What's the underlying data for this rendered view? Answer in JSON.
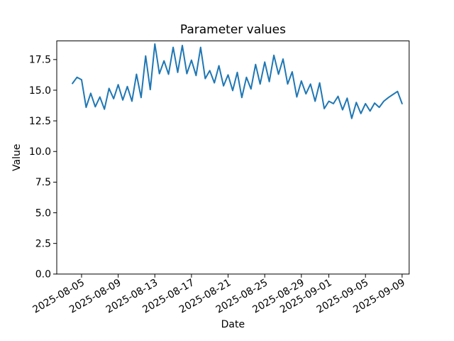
{
  "chart_data": {
    "type": "line",
    "title": "Parameter values",
    "xlabel": "Date",
    "ylabel": "Value",
    "grid": false,
    "legend": "none",
    "background": "#ffffff",
    "line_color": "#1f77b4",
    "ylim": [
      0,
      19.02
    ],
    "xlim": [
      "2025-08-02T07:00:00Z",
      "2025-09-09T18:30:00Z"
    ],
    "y_ticks": [
      0.0,
      2.5,
      5.0,
      7.5,
      10.0,
      12.5,
      15.0,
      17.5
    ],
    "x_ticks": [
      "2025-08-05",
      "2025-08-09",
      "2025-08-13",
      "2025-08-17",
      "2025-08-21",
      "2025-08-25",
      "2025-08-29",
      "2025-09-01",
      "2025-09-05",
      "2025-09-09"
    ],
    "series": [
      {
        "color": "#1f77b4",
        "x": [
          "2025-08-04T00:00:00Z",
          "2025-08-04T12:00:00Z",
          "2025-08-05T00:00:00Z",
          "2025-08-05T12:00:00Z",
          "2025-08-06T00:00:00Z",
          "2025-08-06T12:00:00Z",
          "2025-08-07T00:00:00Z",
          "2025-08-07T12:00:00Z",
          "2025-08-08T00:00:00Z",
          "2025-08-08T12:00:00Z",
          "2025-08-09T00:00:00Z",
          "2025-08-09T12:00:00Z",
          "2025-08-10T00:00:00Z",
          "2025-08-10T12:00:00Z",
          "2025-08-11T00:00:00Z",
          "2025-08-11T12:00:00Z",
          "2025-08-12T00:00:00Z",
          "2025-08-12T12:00:00Z",
          "2025-08-13T00:00:00Z",
          "2025-08-13T12:00:00Z",
          "2025-08-14T00:00:00Z",
          "2025-08-14T12:00:00Z",
          "2025-08-15T00:00:00Z",
          "2025-08-15T12:00:00Z",
          "2025-08-16T00:00:00Z",
          "2025-08-16T12:00:00Z",
          "2025-08-17T00:00:00Z",
          "2025-08-17T12:00:00Z",
          "2025-08-18T00:00:00Z",
          "2025-08-18T12:00:00Z",
          "2025-08-19T00:00:00Z",
          "2025-08-19T12:00:00Z",
          "2025-08-20T00:00:00Z",
          "2025-08-20T12:00:00Z",
          "2025-08-21T00:00:00Z",
          "2025-08-21T12:00:00Z",
          "2025-08-22T00:00:00Z",
          "2025-08-22T12:00:00Z",
          "2025-08-23T00:00:00Z",
          "2025-08-23T12:00:00Z",
          "2025-08-24T00:00:00Z",
          "2025-08-24T12:00:00Z",
          "2025-08-25T00:00:00Z",
          "2025-08-25T12:00:00Z",
          "2025-08-26T00:00:00Z",
          "2025-08-26T12:00:00Z",
          "2025-08-27T00:00:00Z",
          "2025-08-27T12:00:00Z",
          "2025-08-28T00:00:00Z",
          "2025-08-28T12:00:00Z",
          "2025-08-29T00:00:00Z",
          "2025-08-29T12:00:00Z",
          "2025-08-30T00:00:00Z",
          "2025-08-30T12:00:00Z",
          "2025-08-31T00:00:00Z",
          "2025-08-31T12:00:00Z",
          "2025-09-01T00:00:00Z",
          "2025-09-01T12:00:00Z",
          "2025-09-02T00:00:00Z",
          "2025-09-02T12:00:00Z",
          "2025-09-03T00:00:00Z",
          "2025-09-03T12:00:00Z",
          "2025-09-04T00:00:00Z",
          "2025-09-04T12:00:00Z",
          "2025-09-05T00:00:00Z",
          "2025-09-05T12:00:00Z",
          "2025-09-06T00:00:00Z",
          "2025-09-06T12:00:00Z",
          "2025-09-07T00:00:00Z",
          "2025-09-07T12:00:00Z",
          "2025-09-08T00:00:00Z",
          "2025-09-08T12:00:00Z",
          "2025-09-09T00:00:00Z"
        ],
        "values": [
          15.55,
          16.05,
          15.85,
          13.6,
          14.75,
          13.65,
          14.45,
          13.45,
          15.15,
          14.3,
          15.45,
          14.2,
          15.3,
          14.1,
          16.3,
          14.4,
          17.8,
          15.05,
          18.77,
          16.35,
          17.4,
          16.3,
          18.5,
          16.45,
          18.65,
          16.35,
          17.45,
          16.2,
          18.5,
          15.95,
          16.6,
          15.6,
          17.0,
          15.35,
          16.25,
          14.97,
          16.45,
          14.4,
          16.05,
          15.1,
          17.1,
          15.5,
          17.3,
          15.7,
          17.85,
          16.3,
          17.54,
          15.5,
          16.5,
          14.45,
          15.75,
          14.7,
          15.5,
          14.1,
          15.6,
          13.5,
          14.1,
          13.9,
          14.5,
          13.4,
          14.35,
          12.7,
          14.0,
          13.1,
          13.9,
          13.3,
          13.95,
          13.6,
          14.1,
          14.4,
          14.65,
          14.9,
          13.9
        ]
      }
    ]
  }
}
